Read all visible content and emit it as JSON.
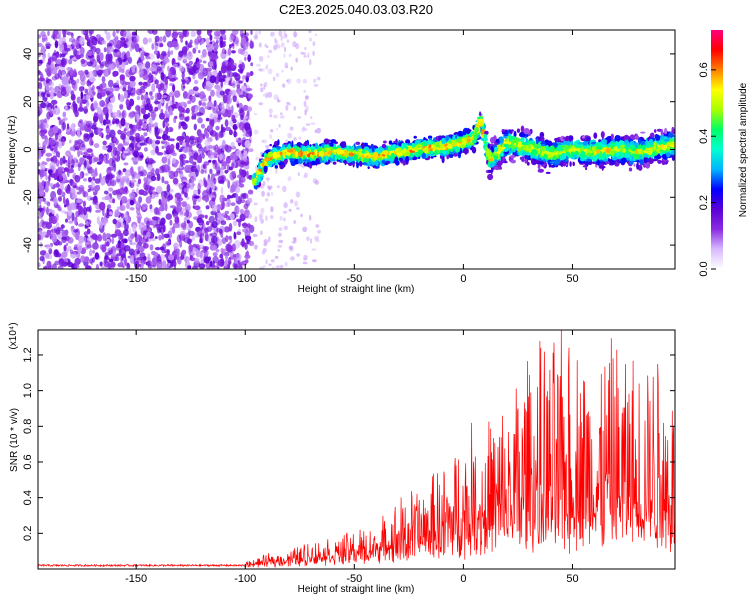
{
  "title": "C2E3.2025.040.03.03.R20",
  "chart_data": [
    {
      "type": "heatmap",
      "xlabel": "Height of straight line (km)",
      "ylabel": "Frequency (Hz)",
      "xlim": [
        -195,
        97
      ],
      "ylim": [
        -50,
        50
      ],
      "xticks": [
        -150,
        -100,
        -50,
        0,
        50
      ],
      "yticks": [
        -40,
        -20,
        0,
        20,
        40
      ],
      "colorbar": {
        "label": "Normalized spectral amplitude",
        "range": [
          0.0,
          0.72
        ],
        "ticks": [
          0.0,
          0.2,
          0.4,
          0.6
        ],
        "colors": [
          "#ffffff",
          "#d8b8ff",
          "#8a2be2",
          "#5b00d6",
          "#0000ff",
          "#00b4ff",
          "#00ffd0",
          "#00ff66",
          "#aaff00",
          "#ffff00",
          "#ff8000",
          "#ff0000",
          "#ff007f"
        ]
      },
      "ridge": {
        "description_x": [
          -96,
          -90,
          -80,
          -70,
          -60,
          -50,
          -40,
          -30,
          -20,
          -10,
          0,
          5,
          8,
          12,
          20,
          30,
          40,
          50,
          60,
          70,
          80,
          90,
          97
        ],
        "freq_hz": [
          -14,
          -4,
          -1,
          -2,
          -1,
          -2,
          -3,
          -1,
          0,
          1,
          3,
          5,
          12,
          -5,
          3,
          1,
          -2,
          0,
          -1,
          0,
          -1,
          1,
          2
        ]
      },
      "noise_region_x": [
        -195,
        -97
      ]
    },
    {
      "type": "line",
      "xlabel": "Height of straight line (km)",
      "ylabel": "SNR (10 * v/v)",
      "multiplier": "(x10⁴)",
      "xlim": [
        -195,
        97
      ],
      "ylim": [
        0,
        1.34
      ],
      "xticks": [
        -150,
        -100,
        -50,
        0,
        50
      ],
      "yticks": [
        0.2,
        0.4,
        0.6,
        0.8,
        1.0,
        1.2
      ],
      "ytick_labels": [
        "0.2",
        "0.4",
        "0.6",
        "0.8",
        "1.0",
        "1.2"
      ],
      "series": [
        {
          "color": "#ff0000",
          "envelope_x": [
            -195,
            -110,
            -100,
            -90,
            -80,
            -70,
            -60,
            -50,
            -40,
            -30,
            -20,
            -10,
            0,
            10,
            20,
            30,
            40,
            50,
            60,
            70,
            80,
            90,
            97
          ],
          "envelope_y": [
            0.03,
            0.03,
            0.04,
            0.08,
            0.11,
            0.16,
            0.17,
            0.22,
            0.25,
            0.4,
            0.48,
            0.58,
            0.78,
            0.85,
            0.98,
            1.25,
            1.28,
            1.33,
            1.2,
            1.3,
            1.2,
            1.28,
            1.0
          ],
          "baseline_y": [
            0.02,
            0.02,
            0.02,
            0.03,
            0.04,
            0.05,
            0.06,
            0.07,
            0.08,
            0.1,
            0.12,
            0.14,
            0.16,
            0.18,
            0.2,
            0.22,
            0.24,
            0.25,
            0.25,
            0.26,
            0.25,
            0.25,
            0.24
          ]
        }
      ]
    }
  ]
}
